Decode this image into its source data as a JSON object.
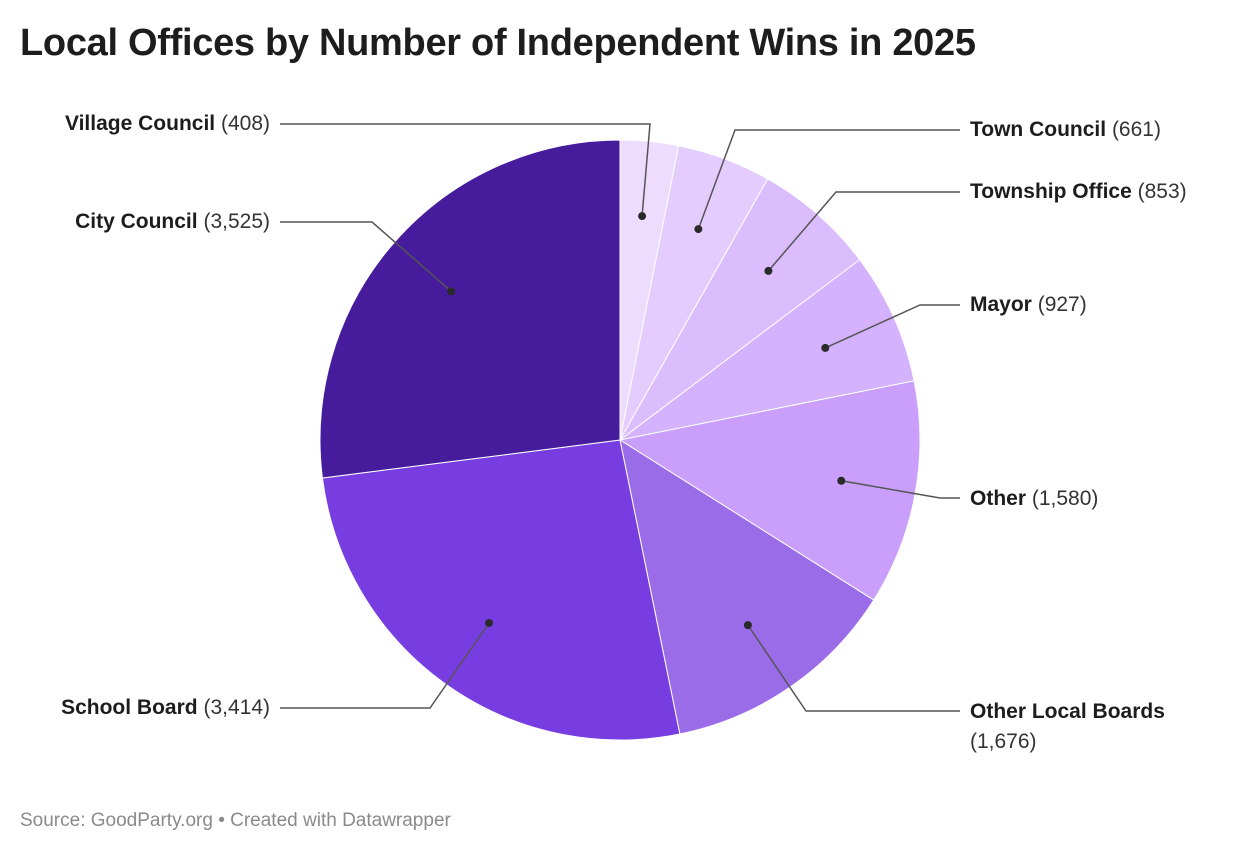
{
  "title": "Local Offices by Number of Independent Wins in 2025",
  "source": "Source: GoodParty.org • Created with Datawrapper",
  "chart_data": {
    "type": "pie",
    "title": "Local Offices by Number of Independent Wins in 2025",
    "start": "top, clockwise",
    "slices": [
      {
        "label": "Village Council",
        "value": 408,
        "display": "(408)",
        "color": "#eddcfe"
      },
      {
        "label": "Town Council",
        "value": 661,
        "display": "(661)",
        "color": "#e4cdfe"
      },
      {
        "label": "Township Office",
        "value": 853,
        "display": "(853)",
        "color": "#dbbdfd"
      },
      {
        "label": "Mayor",
        "value": 927,
        "display": "(927)",
        "color": "#d5b2fd"
      },
      {
        "label": "Other",
        "value": 1580,
        "display": "(1,580)",
        "color": "#c99ffb"
      },
      {
        "label": "Other Local Boards",
        "value": 1676,
        "display": "(1,676)",
        "color": "#9b6ce8"
      },
      {
        "label": "School Board",
        "value": 3414,
        "display": "(3,414)",
        "color": "#783de0"
      },
      {
        "label": "City Council",
        "value": 3525,
        "display": "(3,525)",
        "color": "#461c9c"
      }
    ]
  }
}
